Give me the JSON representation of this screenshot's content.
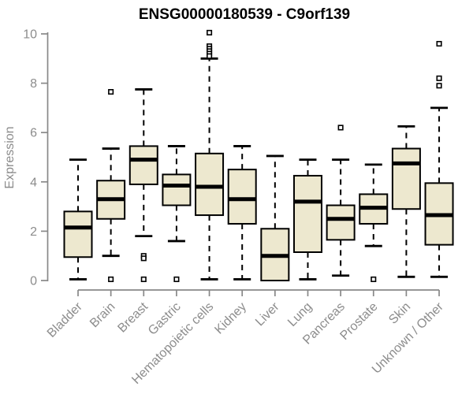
{
  "chart_data": {
    "type": "boxplot",
    "title": "ENSG00000180539 - C9orf139",
    "ylabel": "Expression",
    "xlabel": "",
    "ylim": [
      0,
      10
    ],
    "yticks": [
      0,
      2,
      4,
      6,
      8,
      10
    ],
    "grid": false,
    "legend": "none",
    "box_fill": "#EDE8CF",
    "axis_color": "#888888",
    "axis_text_color": "#8c8c8c",
    "categories": [
      "Bladder",
      "Brain",
      "Breast",
      "Gastric",
      "Hematopoietic cells",
      "Kidney",
      "Liver",
      "Lung",
      "Pancreas",
      "Prostate",
      "Skin",
      "Unknown / Other"
    ],
    "series": [
      {
        "category": "Bladder",
        "low": 0.05,
        "q1": 0.95,
        "median": 2.15,
        "q3": 2.8,
        "high": 4.9,
        "outliers": []
      },
      {
        "category": "Brain",
        "low": 1.0,
        "q1": 2.5,
        "median": 3.3,
        "q3": 4.05,
        "high": 5.35,
        "outliers": [
          7.65,
          0.05
        ]
      },
      {
        "category": "Breast",
        "low": 1.8,
        "q1": 3.9,
        "median": 4.9,
        "q3": 5.45,
        "high": 7.75,
        "outliers": [
          1.0,
          0.9,
          0.05
        ]
      },
      {
        "category": "Gastric",
        "low": 1.6,
        "q1": 3.05,
        "median": 3.85,
        "q3": 4.3,
        "high": 5.45,
        "outliers": [
          0.05
        ]
      },
      {
        "category": "Hematopoietic cells",
        "low": 0.05,
        "q1": 2.65,
        "median": 3.8,
        "q3": 5.15,
        "high": 9.0,
        "outliers": [
          10.05,
          9.5,
          9.4,
          9.3,
          9.2,
          9.1
        ]
      },
      {
        "category": "Kidney",
        "low": 0.05,
        "q1": 2.3,
        "median": 3.3,
        "q3": 4.5,
        "high": 5.45,
        "outliers": []
      },
      {
        "category": "Liver",
        "low": 0.0,
        "q1": 0.0,
        "median": 1.0,
        "q3": 2.1,
        "high": 5.05,
        "outliers": []
      },
      {
        "category": "Lung",
        "low": 0.05,
        "q1": 1.15,
        "median": 3.2,
        "q3": 4.25,
        "high": 4.9,
        "outliers": []
      },
      {
        "category": "Pancreas",
        "low": 0.2,
        "q1": 1.65,
        "median": 2.5,
        "q3": 3.05,
        "high": 4.9,
        "outliers": [
          6.2
        ]
      },
      {
        "category": "Prostate",
        "low": 1.4,
        "q1": 2.3,
        "median": 2.95,
        "q3": 3.5,
        "high": 4.7,
        "outliers": [
          0.05
        ]
      },
      {
        "category": "Skin",
        "low": 0.15,
        "q1": 2.9,
        "median": 4.75,
        "q3": 5.35,
        "high": 6.25,
        "outliers": []
      },
      {
        "category": "Unknown / Other",
        "low": 0.15,
        "q1": 1.45,
        "median": 2.65,
        "q3": 3.95,
        "high": 7.0,
        "outliers": [
          9.6,
          8.2,
          7.9
        ]
      }
    ]
  }
}
